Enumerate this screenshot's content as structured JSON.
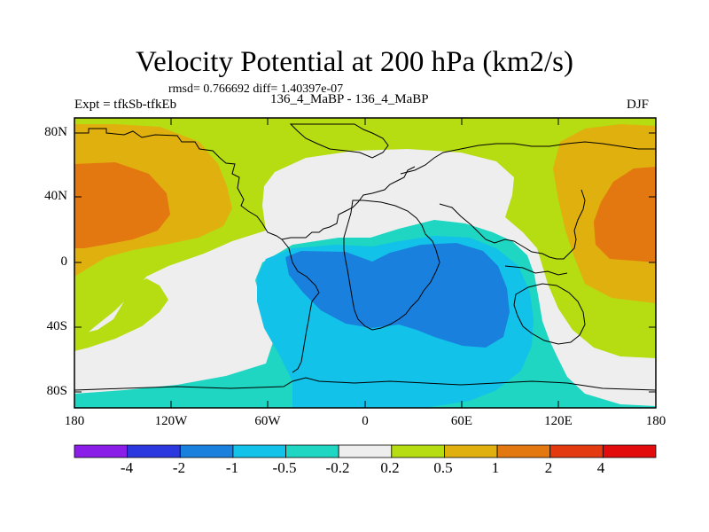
{
  "title": "Velocity Potential at 200 hPa (km2/s)",
  "stats": "rmsd= 0.766692 diff= 1.40397e-07",
  "experiment": "Expt = tfkSb-tfkEb",
  "runs": "136_4_MaBP - 136_4_MaBP",
  "season": "DJF",
  "y_ticks": [
    "80N",
    "40N",
    "0",
    "40S",
    "80S"
  ],
  "x_ticks": [
    "180",
    "120W",
    "60W",
    "0",
    "60E",
    "120E",
    "180"
  ],
  "colorbar": {
    "levels": [
      "-4",
      "-2",
      "-1",
      "-0.5",
      "-0.2",
      "0.2",
      "0.5",
      "1",
      "2",
      "4"
    ],
    "colors": [
      "#8a1ee8",
      "#2b38e0",
      "#1a80de",
      "#12c2e8",
      "#1ed6c2",
      "#eeeeee",
      "#b6dc12",
      "#e0b00e",
      "#e47810",
      "#e43a10",
      "#e20c0c"
    ]
  },
  "fill_colors": {
    "yellowgreen": "#b6dc12",
    "white": "#eeeeee",
    "teal": "#1ed6c2",
    "cyan": "#12c2e8",
    "blue": "#1a80de",
    "gold": "#e0b00e",
    "orange": "#e47810"
  }
}
